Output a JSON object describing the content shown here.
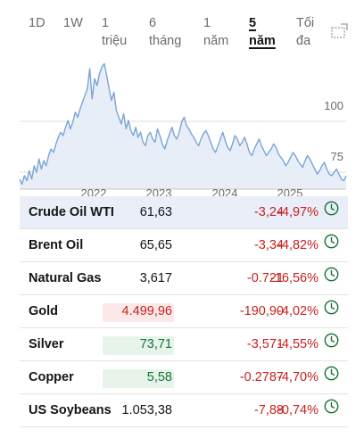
{
  "range_tabs": [
    {
      "line1": "1D",
      "line2": "",
      "active": false
    },
    {
      "line1": "1W",
      "line2": "",
      "active": false
    },
    {
      "line1": "1",
      "line2": "triệu",
      "active": false
    },
    {
      "line1": "6",
      "line2": "tháng",
      "active": false
    },
    {
      "line1": "1",
      "line2": "năm",
      "active": false
    },
    {
      "line1": "5",
      "line2": "năm",
      "active": true
    },
    {
      "line1": "Tối",
      "line2": "đa",
      "active": false
    }
  ],
  "chart_data": {
    "type": "area",
    "x_tick_labels": [
      "2022",
      "2023",
      "2024",
      "2025"
    ],
    "y_tick_labels": [
      "100",
      "75"
    ],
    "ylim": [
      52,
      132
    ],
    "grid": "horizontal",
    "line_color": "#7ba4d6",
    "fill_color": "#e8eef8",
    "series": [
      {
        "values": [
          58,
          55,
          60,
          57,
          63,
          58,
          66,
          62,
          70,
          64,
          69,
          66,
          72,
          76,
          74,
          79,
          83,
          86,
          84,
          89,
          93,
          88,
          92,
          98,
          95,
          100,
          104,
          108,
          112,
          124,
          106,
          118,
          114,
          121,
          125,
          127,
          120,
          112,
          105,
          110,
          99,
          95,
          91,
          97,
          88,
          93,
          87,
          84,
          89,
          83,
          86,
          80,
          78,
          84,
          86,
          82,
          80,
          88,
          84,
          79,
          76,
          81,
          85,
          89,
          84,
          82,
          86,
          92,
          95,
          90,
          88,
          85,
          83,
          80,
          78,
          82,
          85,
          87,
          84,
          80,
          76,
          74,
          78,
          82,
          86,
          81,
          77,
          75,
          79,
          84,
          82,
          78,
          80,
          83,
          79,
          74,
          72,
          76,
          79,
          82,
          78,
          75,
          72,
          74,
          76,
          79,
          77,
          73,
          71,
          69,
          66,
          68,
          71,
          74,
          72,
          69,
          67,
          65,
          69,
          72,
          70,
          67,
          64,
          61,
          63,
          66,
          68,
          64,
          61,
          60,
          62,
          64,
          61,
          58,
          57,
          60
        ]
      }
    ]
  },
  "rows": [
    {
      "name": "Crude Oil WTI",
      "price": "61,63",
      "change": "-3,24",
      "pct": "-4,97%",
      "highlight": "",
      "selected": true
    },
    {
      "name": "Brent Oil",
      "price": "65,65",
      "change": "-3,34",
      "pct": "-4,82%",
      "highlight": "",
      "selected": false
    },
    {
      "name": "Natural Gas",
      "price": "3,617",
      "change": "-0.721",
      "pct": "-16,56%",
      "highlight": "",
      "selected": false
    },
    {
      "name": "Gold",
      "price": "4.499,96",
      "change": "-190,90",
      "pct": "-4,02%",
      "highlight": "down",
      "selected": false
    },
    {
      "name": "Silver",
      "price": "73,71",
      "change": "-3,571",
      "pct": "-4,55%",
      "highlight": "up",
      "selected": false
    },
    {
      "name": "Copper",
      "price": "5,58",
      "change": "-0.2787",
      "pct": "-4,70%",
      "highlight": "up",
      "selected": false
    },
    {
      "name": "US Soybeans",
      "price": "1.053,38",
      "change": "-7,88",
      "pct": "-0,74%",
      "highlight": "",
      "selected": false
    }
  ],
  "colors": {
    "negative": "#c5221f",
    "positive": "#137333",
    "clock": "#137333"
  },
  "icons": {
    "expand": "expand-icon",
    "clock": "clock-icon"
  }
}
